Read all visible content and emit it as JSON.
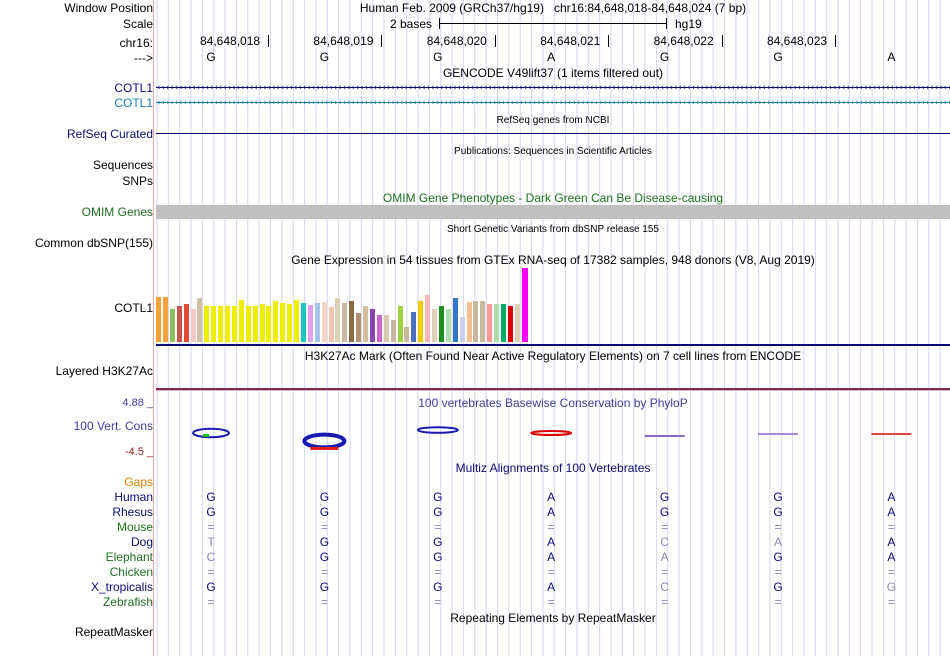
{
  "window": {
    "label": "Window Position",
    "assembly": "Human Feb. 2009 (GRCh37/hg19)",
    "position": "chr16:84,648,018-84,648,024 (7 bp)"
  },
  "scale": {
    "label": "Scale",
    "text": "2 bases",
    "db": "hg19"
  },
  "ruler": {
    "chrom_label": "chr16:",
    "strand_label": "--->",
    "ticks": [
      "84,648,018",
      "84,648,019",
      "84,648,020",
      "84,648,021",
      "84,648,022",
      "84,648,023"
    ],
    "bases": [
      "G",
      "G",
      "G",
      "A",
      "G",
      "G",
      "A"
    ]
  },
  "gencode": {
    "title": "GENCODE V49lift37 (1 items filtered out)",
    "tracks": [
      "COTL1",
      "COTL1"
    ],
    "colors": [
      "#0c0c78",
      "#1b7fb2"
    ]
  },
  "refseq": {
    "label": "RefSeq Curated",
    "title": "RefSeq genes from NCBI",
    "color": "#0c0c78"
  },
  "pubs": {
    "title": "Publications: Sequences in Scientific Articles",
    "labels": [
      "Sequences",
      "SNPs"
    ]
  },
  "omim": {
    "label": "OMIM Genes",
    "title": "OMIM Gene Phenotypes - Dark Green Can Be Disease-causing",
    "color": "#1f6f1f"
  },
  "dbsnp": {
    "label": "Common dbSNP(155)",
    "title": "Short Genetic Variants from dbSNP release 155"
  },
  "gtex": {
    "title": "Gene Expression in 54 tissues from GTEx RNA-seq of 17382 samples, 948 donors (V8, Aug 2019)",
    "label": "COTL1",
    "values": [
      0.61,
      0.61,
      0.44,
      0.48,
      0.52,
      0.45,
      0.6,
      0.49,
      0.49,
      0.49,
      0.49,
      0.49,
      0.57,
      0.49,
      0.48,
      0.52,
      0.49,
      0.55,
      0.53,
      0.52,
      0.57,
      0.53,
      0.5,
      0.53,
      0.54,
      0.47,
      0.6,
      0.53,
      0.55,
      0.39,
      0.48,
      0.44,
      0.37,
      0.36,
      0.3,
      0.48,
      0.2,
      0.41,
      0.55,
      0.64,
      0.45,
      0.49,
      0.45,
      0.59,
      0.34,
      0.54,
      0.55,
      0.56,
      0.51,
      0.51,
      0.52,
      0.49,
      0.52,
      1.0
    ],
    "colors": [
      "#f6a23c",
      "#f6a23c",
      "#8bbf5f",
      "#c25548",
      "#e34a33",
      "#f5c8c8",
      "#cfc0a7",
      "#eeee00",
      "#eeee00",
      "#eeee00",
      "#eeee00",
      "#eeee00",
      "#eeee00",
      "#eeee00",
      "#eeee00",
      "#eeee00",
      "#eeee00",
      "#eeee00",
      "#eeee00",
      "#eeee00",
      "#eeee00",
      "#22c3c3",
      "#e0a0f0",
      "#a6c2e8",
      "#f0d8c8",
      "#f0c4b0",
      "#e0d0b8",
      "#cbb8a0",
      "#8a6a40",
      "#b09070",
      "#d0c0a0",
      "#8844aa",
      "#cc66cc",
      "#d8c8b0",
      "#c8b8a0",
      "#a0d040",
      "#c8b8a0",
      "#4a6fbf",
      "#eecc00",
      "#f6b4b4",
      "#e0d0b8",
      "#1e8f1e",
      "#b0e0b0",
      "#3377cc",
      "#cfcfef",
      "#f5c090",
      "#c8b8a0",
      "#c8b8a0",
      "#ff9999",
      "#aaddaa",
      "#00aa66",
      "#dd0000",
      "#e0d0b8",
      "#ff00ff"
    ]
  },
  "h3k27": {
    "label": "Layered H3K27Ac",
    "title": "H3K27Ac Mark (Often Found Near Active Regulatory Elements) on 7 cell lines from ENCODE"
  },
  "phylop": {
    "title": "100 vertebrates Basewise Conservation by PhyloP",
    "label": "100 Vert. Cons",
    "max": "4.88 _",
    "min": "-4.5 _",
    "scores": [
      2.1,
      3.2,
      1.4,
      0.9,
      0.0,
      -0.3,
      -0.4
    ]
  },
  "multiz": {
    "title": "Multiz Alignments of 100 Vertebrates",
    "gaps_label": "Gaps",
    "species": [
      {
        "name": "Human",
        "bases": [
          "G",
          "G",
          "G",
          "A",
          "G",
          "G",
          "A"
        ]
      },
      {
        "name": "Rhesus",
        "bases": [
          "G",
          "G",
          "G",
          "A",
          "G",
          "G",
          "A"
        ]
      },
      {
        "name": "Mouse",
        "bases": [
          "=",
          "=",
          "=",
          "=",
          "=",
          "=",
          "="
        ]
      },
      {
        "name": "Dog",
        "bases": [
          "T",
          "G",
          "G",
          "A",
          "C",
          "A",
          "A"
        ]
      },
      {
        "name": "Elephant",
        "bases": [
          "C",
          "G",
          "G",
          "A",
          "A",
          "G",
          "A"
        ]
      },
      {
        "name": "Chicken",
        "bases": [
          "=",
          "=",
          "=",
          "=",
          "=",
          "=",
          "="
        ]
      },
      {
        "name": "X_tropicalis",
        "bases": [
          "G",
          "G",
          "G",
          "A",
          "C",
          "G",
          "G"
        ]
      },
      {
        "name": "Zebrafish",
        "bases": [
          "=",
          "=",
          "=",
          "=",
          "=",
          "=",
          "="
        ]
      }
    ]
  },
  "repeat": {
    "label": "RepeatMasker",
    "title": "Repeating Elements by RepeatMasker"
  },
  "colors": {
    "navy": "#0c0c78",
    "teal": "#1b7fb2",
    "green": "#1f6f1f",
    "orange": "#e08000",
    "grid": "#c8c8e8",
    "sidebar": "#f4a7a7",
    "phylop": "#3c3c9c",
    "darkred": "#9b1c1c"
  }
}
